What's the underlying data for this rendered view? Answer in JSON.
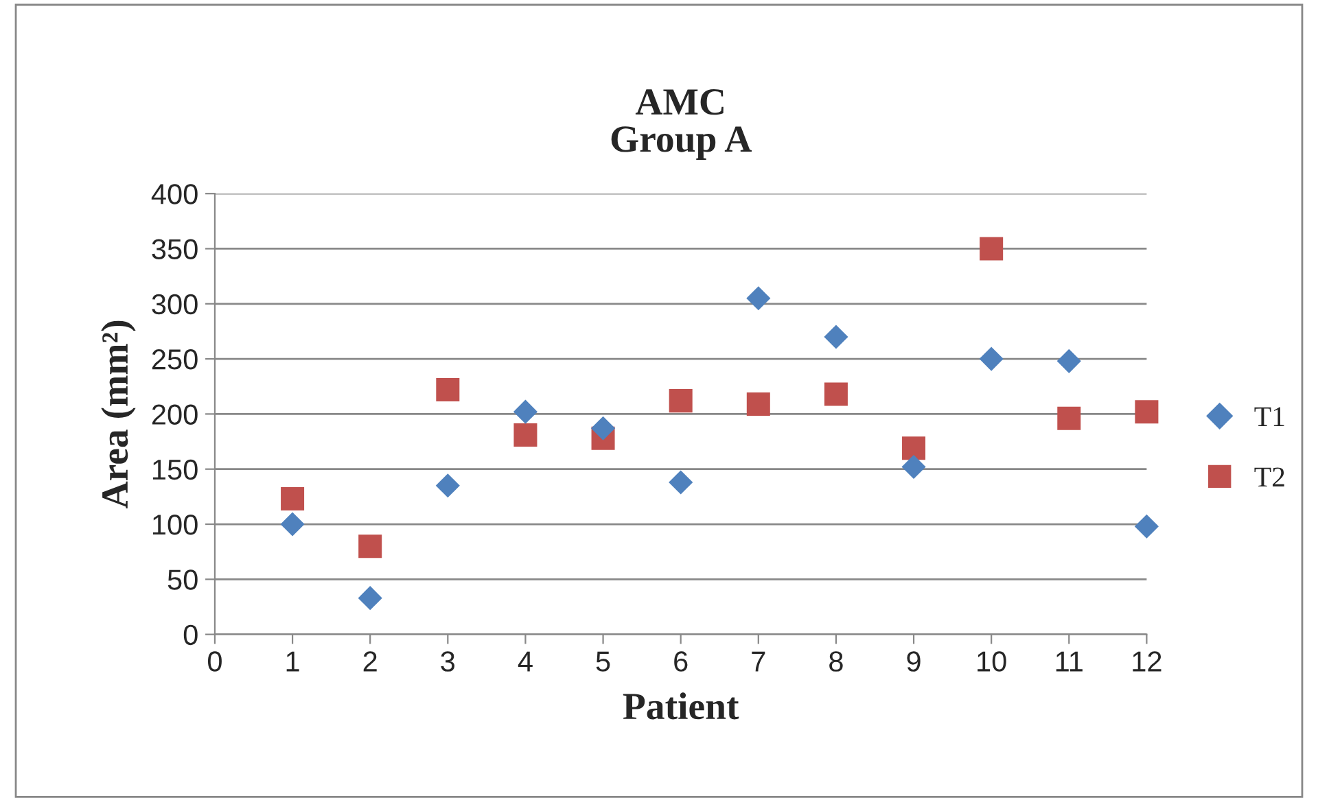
{
  "chart_data": {
    "type": "scatter",
    "title": "AMC\nGroup A",
    "xlabel": "Patient",
    "ylabel": "Area (mm²)",
    "xlim": [
      0,
      12
    ],
    "xticks": [
      0,
      1,
      2,
      3,
      4,
      5,
      6,
      7,
      8,
      9,
      10,
      11,
      12
    ],
    "ylim": [
      0,
      400
    ],
    "yticks": [
      0,
      50,
      100,
      150,
      200,
      250,
      300,
      350,
      400
    ],
    "grid": "y",
    "legend": "right",
    "series": [
      {
        "name": "T1",
        "color": "#4f81bd",
        "marker": "diamond",
        "x": [
          1,
          2,
          3,
          4,
          5,
          6,
          7,
          8,
          9,
          10,
          11,
          12
        ],
        "values": [
          100,
          33,
          135,
          202,
          187,
          138,
          305,
          270,
          152,
          250,
          248,
          98
        ]
      },
      {
        "name": "T2",
        "color": "#c0504d",
        "marker": "square",
        "x": [
          1,
          2,
          3,
          4,
          5,
          6,
          7,
          8,
          9,
          10,
          11,
          12
        ],
        "values": [
          123,
          80,
          222,
          181,
          178,
          212,
          209,
          218,
          169,
          350,
          196,
          202
        ]
      }
    ]
  }
}
